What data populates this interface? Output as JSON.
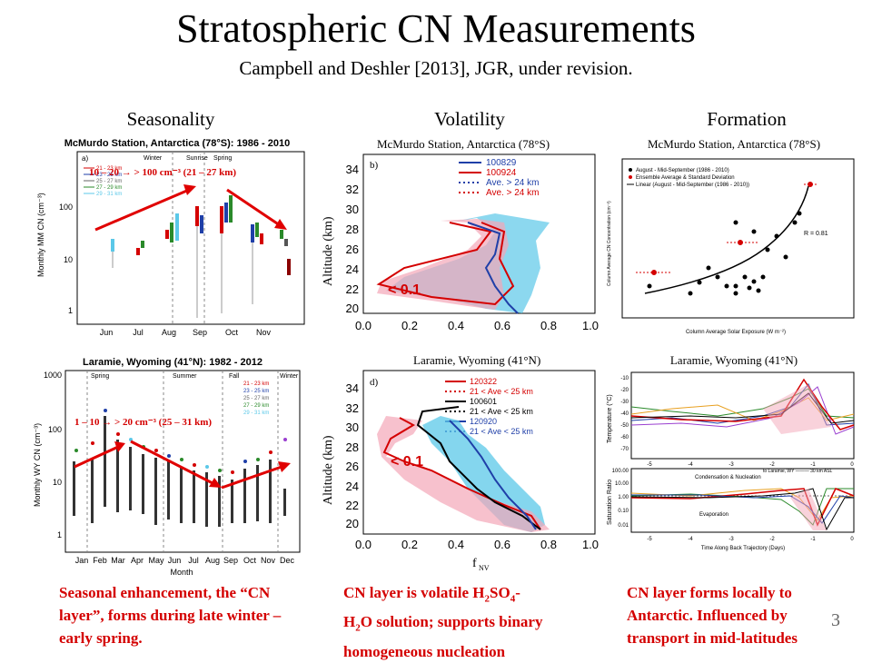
{
  "title": "Stratospheric CN Measurements",
  "subtitle": "Campbell and Deshler [2013], JGR, under revision.",
  "columns": {
    "seasonality": "Seasonality",
    "volatility": "Volatility",
    "formation": "Formation"
  },
  "captions": {
    "seasonality": "Seasonal enhancement, the “CN layer”, forms during late winter – early spring.",
    "volatility_line1": "CN layer is volatile H",
    "volatility_sub1": "2",
    "volatility_mid": "SO",
    "volatility_sub2": "4",
    "volatility_line2": "-",
    "volatility_line3": "H",
    "volatility_sub3": "2",
    "volatility_rest": "O solution; supports binary homogeneous nucleation",
    "formation": "CN layer forms locally to Antarctic.  Influenced by transport in mid-latitudes"
  },
  "page_number": "3",
  "colors": {
    "accent_red": "#d40000",
    "cyan": "#5bc8e8",
    "pink": "#f4a6b8",
    "navy": "#1f3fa8"
  },
  "panels": {
    "mcmurdo_season": {
      "title": "McMurdo Station, Antarctica (78°S): 1986 - 2010",
      "ylabel": "Monthly  MM CN (cm⁻³)",
      "xticks": [
        "Jun",
        "Jul",
        "Aug",
        "Sep",
        "Oct",
        "Nov"
      ],
      "yticks": [
        "1",
        "10",
        "100"
      ],
      "annotation": "10 – 20  → > 100 cm⁻³ (21 – 27 km)",
      "season_labels": [
        "Winter",
        "Sunrise",
        "Spring"
      ],
      "legend": [
        "21 - 23 km",
        "23 - 25 km",
        "25 - 27 km",
        "27 - 29 km",
        "29 - 31 km"
      ]
    },
    "laramie_season": {
      "title": "Laramie, Wyoming (41°N): 1982 - 2012",
      "ylabel": "Monthly  WY CN (cm⁻³)",
      "xlabel": "Month",
      "xticks": [
        "Jan",
        "Feb",
        "Mar",
        "Apr",
        "May",
        "Jun",
        "Jul",
        "Aug",
        "Sep",
        "Oct",
        "Nov",
        "Dec"
      ],
      "yticks": [
        "1",
        "10",
        "100",
        "1000"
      ],
      "annotation": "1 – 10  → > 20 cm⁻³ (25 – 31 km)",
      "season_labels": [
        "Spring",
        "Summer",
        "Fall",
        "Winter"
      ],
      "legend": [
        "21 - 23 km",
        "23 - 25 km",
        "25 - 27 km",
        "27 - 29 km",
        "29 - 31 km"
      ]
    },
    "mcmurdo_volatility": {
      "title": "McMurdo Station, Antarctica (78°S)",
      "panel_label": "b)",
      "ylabel": "Altitude (km)",
      "legend": [
        "100829",
        "100924",
        "Ave. > 24 km",
        "Ave. > 24 km"
      ],
      "yticks": [
        "20",
        "22",
        "24",
        "26",
        "28",
        "30",
        "32",
        "34"
      ],
      "xticks": [
        "0.0",
        "0.2",
        "0.4",
        "0.6",
        "0.8",
        "1.0"
      ],
      "annotation": "< 0.1"
    },
    "laramie_volatility": {
      "title": "Laramie, Wyoming (41°N)",
      "panel_label": "d)",
      "ylabel": "Altitude (km)",
      "xlabel": "f",
      "xlabel_sub": "NV",
      "legend": [
        "120322",
        "21 < Ave < 25 km",
        "100601",
        "21 < Ave < 25 km",
        "120920",
        "21 < Ave < 25 km"
      ],
      "yticks": [
        "20",
        "22",
        "24",
        "26",
        "28",
        "30",
        "32",
        "34"
      ],
      "xticks": [
        "0.0",
        "0.2",
        "0.4",
        "0.6",
        "0.8",
        "1.0"
      ],
      "annotation": "< 0.1"
    },
    "mcmurdo_formation": {
      "title": "McMurdo Station, Antarctica (78°S)",
      "ylabel": "Column Average CN Concentration (cm⁻³)",
      "xlabel": "Column Average Solar Exposure (W m⁻²)",
      "legend": [
        "August - Mid-September (1986 - 2010)",
        "Ensemble Average & Standard Deviation",
        "Linear (August - Mid-September (1986 - 2010))"
      ],
      "r_value": "R = 0.81"
    },
    "laramie_formation": {
      "title": "Laramie, Wyoming (41°N)",
      "ylabel_top": "Temperature (°C)",
      "ylabel_bottom": "Saturation Ratio",
      "xlabel": "Time Along Back Trajectory (Days)",
      "top_yticks": [
        "-10",
        "-20",
        "-30",
        "-40",
        "-50",
        "-60",
        "-70"
      ],
      "bottom_yticks": [
        "100.00",
        "10.00",
        "1.00",
        "0.10",
        "0.01"
      ],
      "xticks": [
        "-5",
        "-4",
        "-3",
        "-2",
        "-1",
        "0"
      ],
      "label_condensation": "Condensation & Nucleation",
      "label_evaporation": "Evaporation",
      "label_to_laramie": "to Laramie, WY ——— 30 km ASL"
    }
  }
}
